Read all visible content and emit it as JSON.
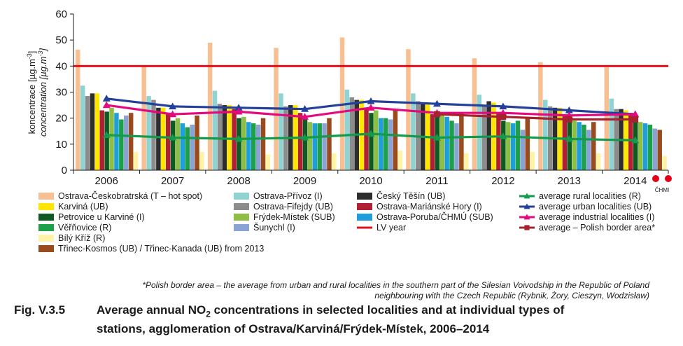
{
  "chart_data": {
    "type": "bar",
    "categories": [
      "2006",
      "2007",
      "2008",
      "2009",
      "2010",
      "2011",
      "2012",
      "2013",
      "2014"
    ],
    "ylim": [
      0,
      60
    ],
    "yticks": [
      0,
      10,
      20,
      30,
      40,
      50,
      60
    ],
    "ylabel_line1": "koncentrace [µg.m",
    "ylabel_line1_sup": "-3",
    "ylabel_line1_end": "]",
    "ylabel_line2": "concentration [µg.m",
    "ylabel_line2_sup": "-3",
    "ylabel_line2_end": "]",
    "grid": false,
    "bar_series": [
      {
        "name": "Ostrava-Českobratrská (T – hot spot)",
        "color": "#f8bf93",
        "values": [
          46.3,
          40,
          49,
          47,
          51,
          46.5,
          43,
          41.5,
          39.5
        ]
      },
      {
        "name": "Ostrava-Přívoz (I)",
        "color": "#8fd3d3",
        "values": [
          32.5,
          28.5,
          30.5,
          29.5,
          31,
          29.5,
          29,
          27,
          27.5
        ]
      },
      {
        "name": "Ostrava-Fifejdy (UB)",
        "color": "#8c8c8c",
        "values": [
          28.5,
          27,
          25.5,
          24.5,
          28,
          26.5,
          24.5,
          24.5,
          23.5
        ]
      },
      {
        "name": "Český Těšín (UB)",
        "color": "#2d2d2d",
        "values": [
          29.5,
          24,
          25,
          25,
          27,
          25.5,
          26.5,
          24,
          23.5
        ]
      },
      {
        "name": "Karviná (UB)",
        "color": "#ffe600",
        "values": [
          29.5,
          24,
          25,
          25,
          27,
          25.5,
          26,
          24,
          23
        ]
      },
      {
        "name": "Ostrava-Mariánské Hory (I)",
        "color": "#b11f34",
        "values": [
          23,
          22,
          23.5,
          22,
          23.5,
          21.5,
          22,
          21,
          22
        ]
      },
      {
        "name": "Petrovice u Karviné (I)",
        "color": "#0f5a22",
        "values": [
          22.5,
          19,
          20,
          20.5,
          22,
          21.5,
          19,
          19,
          19
        ]
      },
      {
        "name": "Frýdek-Místek (SUB)",
        "color": "#8dbf47",
        "values": [
          24,
          20,
          20.5,
          18.5,
          23,
          21,
          18.5,
          19,
          18.5
        ]
      },
      {
        "name": "Ostrava-Poruba/ČHMÚ (SUB)",
        "color": "#1e9fdc",
        "values": [
          22,
          18,
          18.5,
          18,
          20,
          20.5,
          18,
          18.5,
          18
        ]
      },
      {
        "name": "Věřňovice (R)",
        "color": "#1ca04a",
        "values": [
          19.5,
          16.5,
          18,
          18,
          20,
          19,
          19,
          17.5,
          17.5
        ]
      },
      {
        "name": "Šunychl (I)",
        "color": "#8aa2d4",
        "values": [
          21,
          17.5,
          17.5,
          18,
          19.5,
          18,
          15.5,
          15.5,
          16
        ]
      },
      {
        "name": "Třinec-Kosmos (UB) / Třinec-Kanada (UB) from 2013",
        "color": "#9a4b1e",
        "values": [
          22,
          21,
          20,
          20,
          23,
          22,
          20,
          18.5,
          15.5
        ]
      },
      {
        "name": "Bílý Kříž (R)",
        "color": "#fff3a6",
        "values": [
          7,
          7,
          6,
          6.5,
          7.5,
          6.5,
          7,
          6.5,
          5.5
        ]
      }
    ],
    "line_series": [
      {
        "name": "average rural localities (R)",
        "color": "#139a4a",
        "marker": "triangle",
        "values": [
          13.5,
          12.5,
          12,
          12.5,
          14,
          12.5,
          13,
          12,
          11.5
        ]
      },
      {
        "name": "average urban localities (UB)",
        "color": "#23409a",
        "marker": "triangle",
        "values": [
          27.5,
          24.5,
          24,
          23.5,
          26.5,
          25.5,
          24.5,
          23,
          21.5
        ]
      },
      {
        "name": "average industrial localities (I)",
        "color": "#e5097f",
        "marker": "triangle",
        "values": [
          25,
          21.5,
          22.5,
          20.5,
          24,
          22,
          22,
          21,
          21.5
        ]
      },
      {
        "name": "average  – Polish border area*",
        "color": "#a5222f",
        "marker": "square",
        "values": [
          null,
          null,
          null,
          null,
          null,
          21.5,
          20.5,
          19.5,
          19.5
        ]
      }
    ],
    "limit_line": {
      "name": "LV year",
      "color": "#e5101c",
      "value": 40
    },
    "legend_placement": "bottom"
  },
  "footnote": {
    "line1": "*Polish border area – the average from urban and rural localities in the southern part of the Silesian Voivodship in the Republic of Poland",
    "line2": "neighbouring with the Czech Republic (Rybnik, Żory, Cieszyn, Wodzisław)"
  },
  "caption": {
    "label": "Fig. V.3.5",
    "text_a": "Average annual NO",
    "text_sub": "2",
    "text_b": " concentrations in selected localities and at individual types of",
    "line2": "stations, agglomeration of Ostrava/Karviná/Frýdek-Místek, 2006–2014"
  },
  "logo": {
    "text": "ČHMI",
    "color": "#e3001b"
  }
}
